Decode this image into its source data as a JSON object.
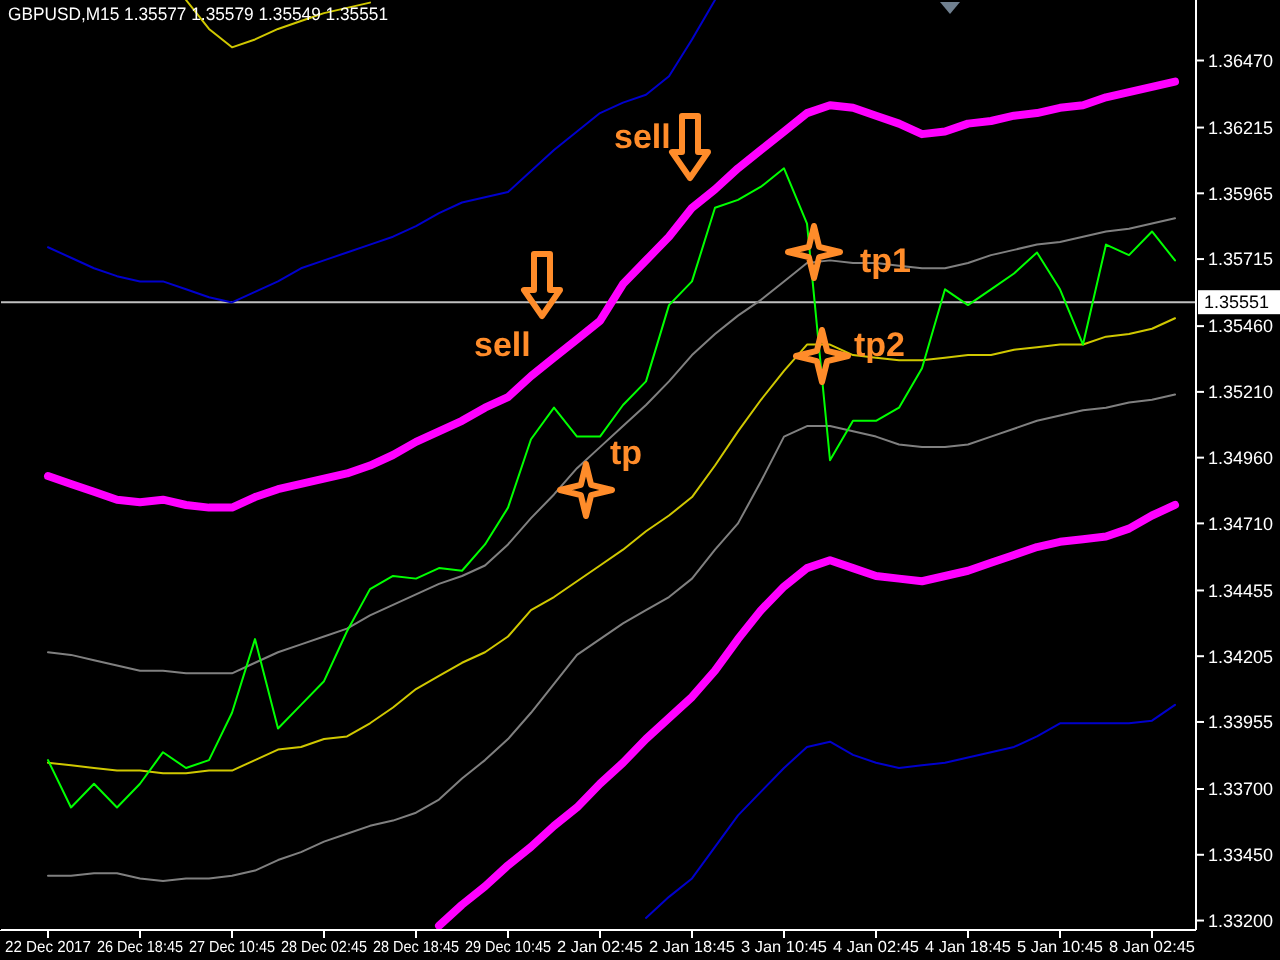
{
  "chart_data": {
    "type": "line",
    "title": "GBPUSD,M15  1.35577 1.35579 1.35549 1.35551",
    "categories": [
      "22 Dec 2017",
      null,
      null,
      null,
      "26 Dec 18:45",
      null,
      null,
      null,
      "27 Dec 10:45",
      null,
      null,
      null,
      "28 Dec 02:45",
      null,
      null,
      null,
      "28 Dec 18:45",
      null,
      null,
      null,
      "29 Dec 10:45",
      null,
      null,
      null,
      "2 Jan 02:45",
      null,
      null,
      null,
      "2 Jan 18:45",
      null,
      null,
      null,
      "3 Jan 10:45",
      null,
      null,
      null,
      "4 Jan 02:45",
      null,
      null,
      null,
      "4 Jan 18:45",
      null,
      null,
      null,
      "5 Jan 10:45",
      null,
      null,
      null,
      "8 Jan 02:45",
      null
    ],
    "ylim": [
      1.33164,
      1.367
    ],
    "yticks": [
      {
        "value": 1.3647,
        "label": "1.36470"
      },
      {
        "value": 1.36215,
        "label": "1.36215"
      },
      {
        "value": 1.35965,
        "label": "1.35965"
      },
      {
        "value": 1.35715,
        "label": "1.35715"
      },
      {
        "value": 1.3546,
        "label": "1.35460"
      },
      {
        "value": 1.3521,
        "label": "1.35210"
      },
      {
        "value": 1.3496,
        "label": "1.34960"
      },
      {
        "value": 1.3471,
        "label": "1.34710"
      },
      {
        "value": 1.34455,
        "label": "1.34455"
      },
      {
        "value": 1.34205,
        "label": "1.34205"
      },
      {
        "value": 1.33955,
        "label": "1.33955"
      },
      {
        "value": 1.337,
        "label": "1.33700"
      },
      {
        "value": 1.3345,
        "label": "1.33450"
      },
      {
        "value": 1.332,
        "label": "1.33200"
      }
    ],
    "grid": false,
    "ref_lines": [
      {
        "axis": "y",
        "value": 1.35551,
        "label": "1.35551",
        "color": "#c0c0c0"
      }
    ],
    "annotations": [
      "sell",
      "sell",
      "tp",
      "tp1",
      "tp2"
    ],
    "series": [
      {
        "color": "#d0c800",
        "values": [
          null,
          null,
          null,
          null,
          null,
          null,
          1.367,
          1.3659,
          1.3652,
          1.3655,
          1.3659,
          1.3662,
          1.3665,
          1.3667,
          1.3669,
          null,
          null,
          null,
          null,
          null,
          null,
          null,
          null,
          null,
          null,
          null,
          null,
          null,
          null,
          null,
          null,
          null,
          null,
          null,
          null,
          null,
          null,
          null,
          null,
          null,
          null,
          null,
          null,
          null,
          null,
          null,
          null,
          null,
          null,
          null
        ]
      },
      {
        "color": "#0000cc",
        "values": [
          1.3576,
          1.3572,
          1.3568,
          1.3565,
          1.3563,
          1.3563,
          1.356,
          1.3557,
          1.3555,
          1.3559,
          1.3563,
          1.3568,
          1.3571,
          1.3574,
          1.3577,
          1.358,
          1.3584,
          1.3589,
          1.3593,
          1.3595,
          1.3597,
          1.3605,
          1.3613,
          1.362,
          1.3627,
          1.3631,
          1.3634,
          1.3641,
          1.3655,
          1.367,
          null,
          null,
          null,
          null,
          null,
          null,
          null,
          null,
          null,
          null,
          null,
          null,
          null,
          null,
          null,
          null,
          null,
          null,
          null,
          null
        ]
      },
      {
        "color": "#ff00ff",
        "values": [
          1.3489,
          1.3486,
          1.3483,
          1.348,
          1.3479,
          1.348,
          1.3478,
          1.3477,
          1.3477,
          1.3481,
          1.3484,
          1.3486,
          1.3488,
          1.349,
          1.3493,
          1.3497,
          1.3502,
          1.3506,
          1.351,
          1.3515,
          1.3519,
          1.3527,
          1.3534,
          1.3541,
          1.3548,
          1.3562,
          1.3571,
          1.358,
          1.3591,
          1.3598,
          1.3606,
          1.3613,
          1.362,
          1.3627,
          1.363,
          1.3629,
          1.3626,
          1.3623,
          1.3619,
          1.362,
          1.3623,
          1.3624,
          1.3626,
          1.3627,
          1.3629,
          1.363,
          1.3633,
          1.3635,
          1.3637,
          1.3639
        ]
      },
      {
        "color": "#808080",
        "values": [
          1.3422,
          1.3421,
          1.3419,
          1.3417,
          1.3415,
          1.3415,
          1.3414,
          1.3414,
          1.3414,
          1.3418,
          1.3422,
          1.3425,
          1.3428,
          1.3431,
          1.3436,
          1.344,
          1.3444,
          1.3448,
          1.3451,
          1.3455,
          1.3463,
          1.3473,
          1.3482,
          1.3492,
          1.35,
          1.3508,
          1.3516,
          1.3525,
          1.3535,
          1.3543,
          1.355,
          1.3556,
          1.3563,
          1.357,
          1.3571,
          1.357,
          1.357,
          1.3569,
          1.3568,
          1.3568,
          1.357,
          1.3573,
          1.3575,
          1.3577,
          1.3578,
          1.358,
          1.3582,
          1.3583,
          1.3585,
          1.3587
        ]
      },
      {
        "color": "#d0c800",
        "values": [
          1.338,
          1.3379,
          1.3378,
          1.3377,
          1.3377,
          1.3376,
          1.3376,
          1.3377,
          1.3377,
          1.3381,
          1.3385,
          1.3386,
          1.3389,
          1.339,
          1.3395,
          1.3401,
          1.3408,
          1.3413,
          1.3418,
          1.3422,
          1.3428,
          1.3438,
          1.3443,
          1.3449,
          1.3455,
          1.3461,
          1.3468,
          1.3474,
          1.3481,
          1.3493,
          1.3506,
          1.3518,
          1.3529,
          1.3539,
          1.3539,
          1.3535,
          1.3534,
          1.3533,
          1.3533,
          1.3534,
          1.3535,
          1.3535,
          1.3537,
          1.3538,
          1.3539,
          1.3539,
          1.3542,
          1.3543,
          1.3545,
          1.3549
        ]
      },
      {
        "color": "#808080",
        "values": [
          1.3337,
          1.3337,
          1.3338,
          1.3338,
          1.3336,
          1.3335,
          1.3336,
          1.3336,
          1.3337,
          1.3339,
          1.3343,
          1.3346,
          1.335,
          1.3353,
          1.3356,
          1.3358,
          1.3361,
          1.3366,
          1.3374,
          1.3381,
          1.3389,
          1.3399,
          1.341,
          1.3421,
          1.3427,
          1.3433,
          1.3438,
          1.3443,
          1.345,
          1.3461,
          1.3471,
          1.3487,
          1.3504,
          1.3508,
          1.3508,
          1.3506,
          1.3504,
          1.3501,
          1.35,
          1.35,
          1.3501,
          1.3504,
          1.3507,
          1.351,
          1.3512,
          1.3514,
          1.3515,
          1.3517,
          1.3518,
          1.352
        ]
      },
      {
        "color": "#ff00ff",
        "values": [
          null,
          null,
          null,
          null,
          null,
          null,
          null,
          null,
          null,
          null,
          null,
          null,
          null,
          null,
          null,
          null,
          null,
          1.3318,
          1.3326,
          1.3333,
          1.3341,
          1.3348,
          1.3356,
          1.3363,
          1.3372,
          1.338,
          1.3389,
          1.3397,
          1.3405,
          1.3415,
          1.3427,
          1.3438,
          1.3447,
          1.3454,
          1.3457,
          1.3454,
          1.3451,
          1.345,
          1.3449,
          1.3451,
          1.3453,
          1.3456,
          1.3459,
          1.3462,
          1.3464,
          1.3465,
          1.3466,
          1.3469,
          1.3474,
          1.3478
        ]
      },
      {
        "color": "#0000cc",
        "values": [
          null,
          null,
          null,
          null,
          null,
          null,
          null,
          null,
          null,
          null,
          null,
          null,
          null,
          null,
          null,
          null,
          null,
          null,
          null,
          null,
          null,
          null,
          null,
          null,
          null,
          null,
          1.3321,
          1.3329,
          1.3336,
          1.3348,
          1.336,
          1.3369,
          1.3378,
          1.3386,
          1.3388,
          1.3383,
          1.338,
          1.3378,
          1.3379,
          1.338,
          1.3382,
          1.3384,
          1.3386,
          1.339,
          1.3395,
          1.3395,
          1.3395,
          1.3395,
          1.3396,
          1.3402
        ]
      },
      {
        "color": "#00ff00",
        "values": [
          1.3381,
          1.3363,
          1.3372,
          1.3363,
          1.3372,
          1.3384,
          1.3378,
          1.3381,
          1.3399,
          1.3427,
          1.3393,
          1.3402,
          1.3411,
          1.343,
          1.3446,
          1.3451,
          1.345,
          1.3454,
          1.3453,
          1.3463,
          1.3477,
          1.3503,
          1.3515,
          1.3504,
          1.3504,
          1.3516,
          1.3525,
          1.3554,
          1.3563,
          1.3591,
          1.3594,
          1.3599,
          1.3606,
          1.3585,
          1.3495,
          1.351,
          1.351,
          1.3515,
          1.353,
          1.356,
          1.3554,
          1.356,
          1.3566,
          1.3574,
          1.356,
          1.3539,
          1.3577,
          1.3573,
          1.3582,
          1.3571
        ]
      }
    ]
  }
}
